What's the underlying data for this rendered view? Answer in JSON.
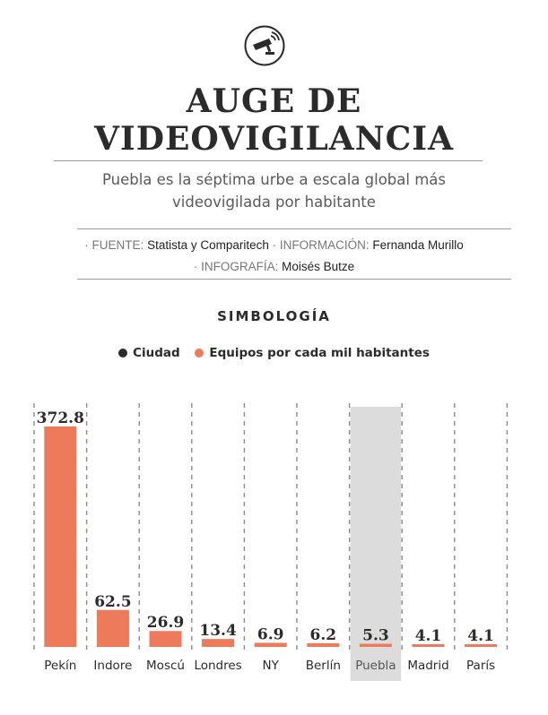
{
  "header": {
    "title_line1": "AUGE DE",
    "title_line2": "VIDEOVIGILANCIA",
    "subtitle_line1": "Puebla es la séptima urbe a escala global más",
    "subtitle_line2": "videovigilada por habitante",
    "icon": "security-camera-icon"
  },
  "credits": {
    "source_key": "· FUENTE:",
    "source_value": "Statista y Comparitech",
    "info_key": "· INFORMACIÓN:",
    "info_value": "Fernanda Murillo",
    "graphic_key": "· INFOGRAFÍA:",
    "graphic_value": "Moisés Butze"
  },
  "legend": {
    "title": "SIMBOLOGÍA",
    "items": [
      {
        "label": "Ciudad",
        "color": "#2b2b2b"
      },
      {
        "label": "Equipos por cada mil habitantes",
        "color": "#ee7a5c"
      }
    ]
  },
  "colors": {
    "bar": "#ee7a5c",
    "highlight_bg": "#dcdcdc",
    "text": "#2b2b2b"
  },
  "chart_data": {
    "type": "bar",
    "categories": [
      "Pekín",
      "Indore",
      "Moscú",
      "Londres",
      "NY",
      "Berlín",
      "Puebla",
      "Madrid",
      "París"
    ],
    "values": [
      372.8,
      62.5,
      26.9,
      13.4,
      6.9,
      6.2,
      5.3,
      4.1,
      4.1
    ],
    "value_labels": [
      "372.8",
      "62.5",
      "26.9",
      "13.4",
      "6.9",
      "6.2",
      "5.3",
      "4.1",
      "4.1"
    ],
    "highlight": "Puebla",
    "ylim": [
      0,
      372.8
    ],
    "grid": "vertical dashed separators"
  }
}
